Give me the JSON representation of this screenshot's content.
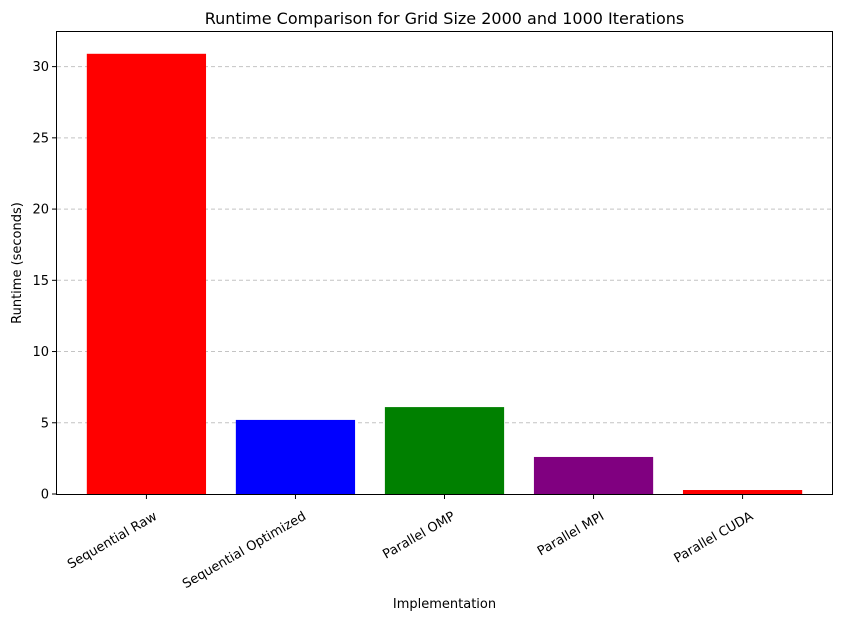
{
  "chart_data": {
    "type": "bar",
    "title": "Runtime Comparison for Grid Size 2000 and 1000 Iterations",
    "xlabel": "Implementation",
    "ylabel": "Runtime (seconds)",
    "categories": [
      "Sequential Raw",
      "Sequential Optimized",
      "Parallel OMP",
      "Parallel MPI",
      "Parallel CUDA"
    ],
    "values": [
      30.9,
      5.2,
      6.1,
      2.6,
      0.28
    ],
    "colors": [
      "#ff0000",
      "#0000ff",
      "#008000",
      "#800080",
      "#ff0000"
    ],
    "ylim": [
      0,
      32.5
    ],
    "yticks": [
      0,
      5,
      10,
      15,
      20,
      25,
      30
    ],
    "grid": "y-dashed",
    "legend": "none"
  }
}
